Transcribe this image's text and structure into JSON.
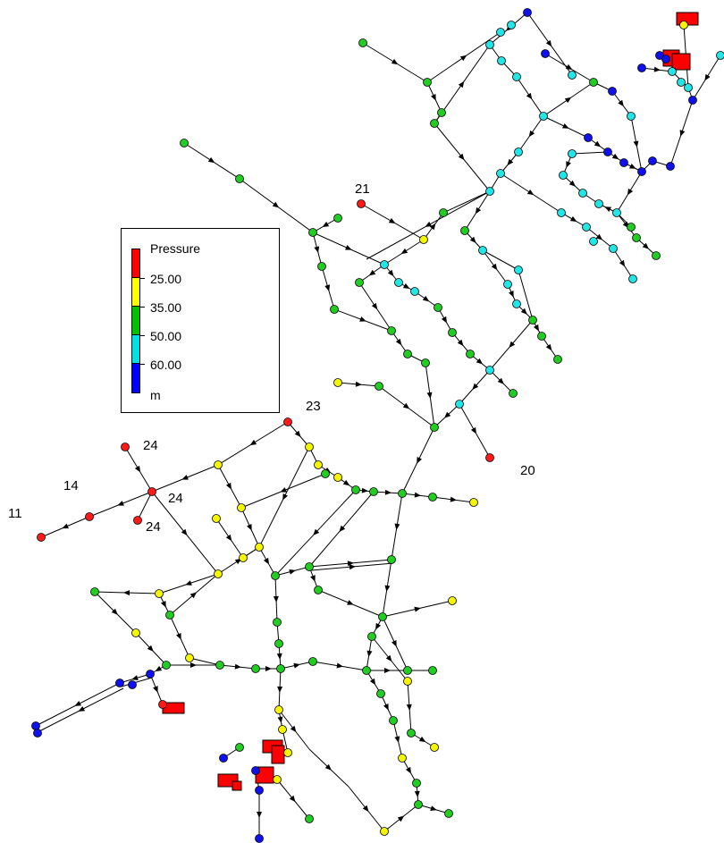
{
  "legend": {
    "title": "Pressure",
    "levels": [
      "25.00",
      "35.00",
      "50.00",
      "60.00"
    ],
    "unit": "m",
    "colors": [
      "#ff0000",
      "#ffff00",
      "#00c000",
      "#00e0e0",
      "#0000ff"
    ]
  },
  "node_labels": [
    "21",
    "23",
    "24",
    "14",
    "24",
    "11",
    "24",
    "20"
  ],
  "colors": {
    "R": "#ff1a1a",
    "Y": "#f5f500",
    "G": "#22cc22",
    "C": "#22e5e5",
    "B": "#1010ee",
    "pipe": "#000000",
    "tank": "#ff0000"
  }
}
